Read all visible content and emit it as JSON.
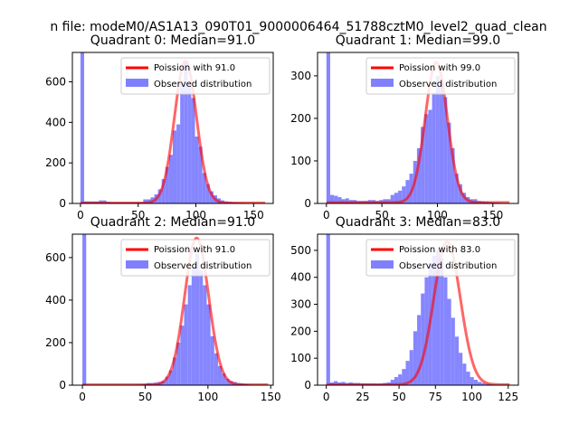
{
  "figure": {
    "suptitle": "n file: modeM0/AS1A13_090T01_9000006464_51788cztM0_level2_quad_clean"
  },
  "colors": {
    "fit_line": "#ff0000",
    "hist_bars": "#8080ff",
    "axes": "#000000",
    "background": "#ffffff"
  },
  "chart_data": [
    {
      "type": "bar",
      "title": "Quadrant 0: Median=91.0",
      "xlim": [
        -7,
        167
      ],
      "ylim": [
        0,
        745
      ],
      "xticks": [
        0,
        50,
        100,
        150
      ],
      "yticks": [
        0,
        200,
        400,
        600
      ],
      "legend": {
        "position": "top-right",
        "entries": [
          "Poission with 91.0",
          "Observed distribution"
        ]
      },
      "fit": {
        "name": "Poission with 91.0",
        "mean": 91.0,
        "peak": 700,
        "x_range": [
          0,
          160
        ]
      },
      "hist": {
        "name": "Observed distribution",
        "bin_width": 3.2,
        "x": [
          0,
          3.2,
          6.4,
          9.6,
          12.8,
          16,
          19.2,
          22.4,
          25.6,
          28.8,
          32,
          35.2,
          38.4,
          41.6,
          44.8,
          48,
          51.2,
          54.4,
          57.6,
          60.8,
          64,
          67.2,
          70.4,
          73.6,
          76.8,
          80,
          83.2,
          86.4,
          89.6,
          92.8,
          96,
          99.2,
          102.4,
          105.6,
          108.8,
          112,
          115.2,
          118.4,
          121.6,
          124.8,
          128,
          131.2,
          134.4,
          137.6,
          140.8,
          144,
          147.2,
          150.4,
          153.6,
          156.8
        ],
        "values": [
          745,
          10,
          10,
          10,
          10,
          15,
          15,
          8,
          5,
          5,
          5,
          5,
          5,
          5,
          5,
          5,
          5,
          20,
          20,
          30,
          45,
          70,
          120,
          180,
          240,
          360,
          390,
          600,
          700,
          590,
          520,
          330,
          280,
          150,
          95,
          60,
          40,
          25,
          15,
          10,
          8,
          5,
          4,
          3,
          2,
          2,
          1,
          1,
          1,
          0
        ]
      }
    },
    {
      "type": "bar",
      "title": "Quadrant 1: Median=99.0",
      "xlim": [
        -8,
        173
      ],
      "ylim": [
        0,
        355
      ],
      "xticks": [
        0,
        50,
        100,
        150
      ],
      "yticks": [
        0,
        100,
        200,
        300
      ],
      "legend": {
        "position": "top-right",
        "entries": [
          "Poission with 99.0",
          "Observed distribution"
        ]
      },
      "fit": {
        "name": "Poission with 99.0",
        "mean": 99.0,
        "peak": 330,
        "x_range": [
          0,
          165
        ]
      },
      "hist": {
        "name": "Observed distribution",
        "bin_width": 3.4,
        "x": [
          0,
          3.4,
          6.8,
          10.2,
          13.6,
          17,
          20.4,
          23.8,
          27.2,
          30.6,
          34,
          37.4,
          40.8,
          44.2,
          47.6,
          51,
          54.4,
          57.8,
          61.2,
          64.6,
          68,
          71.4,
          74.8,
          78.2,
          81.6,
          85,
          88.4,
          91.8,
          95.2,
          98.6,
          102,
          105.4,
          108.8,
          112.2,
          115.6,
          119,
          122.4,
          125.8,
          129.2,
          132.6,
          136,
          139.4,
          142.8,
          146.2,
          149.6,
          153,
          156.4,
          159.8,
          163.2,
          166.6
        ],
        "values": [
          355,
          20,
          18,
          15,
          10,
          12,
          8,
          8,
          6,
          6,
          6,
          8,
          8,
          6,
          8,
          10,
          10,
          20,
          25,
          30,
          40,
          55,
          70,
          100,
          130,
          180,
          210,
          220,
          260,
          300,
          280,
          250,
          190,
          130,
          70,
          45,
          25,
          15,
          10,
          10,
          6,
          5,
          4,
          3,
          2,
          2,
          1,
          1,
          0,
          0
        ]
      }
    },
    {
      "type": "bar",
      "title": "Quadrant 2: Median=91.0",
      "xlim": [
        -8,
        152
      ],
      "ylim": [
        0,
        710
      ],
      "xticks": [
        0,
        50,
        100,
        150
      ],
      "yticks": [
        0,
        200,
        400,
        600
      ],
      "legend": {
        "position": "top-right",
        "entries": [
          "Poission with 91.0",
          "Observed distribution"
        ]
      },
      "fit": {
        "name": "Poission with 91.0",
        "mean": 91.0,
        "peak": 690,
        "x_range": [
          0,
          148
        ]
      },
      "hist": {
        "name": "Observed distribution",
        "bin_width": 3,
        "x": [
          0,
          3,
          6,
          9,
          12,
          15,
          18,
          21,
          24,
          27,
          30,
          33,
          36,
          39,
          42,
          45,
          48,
          51,
          54,
          57,
          60,
          63,
          66,
          69,
          72,
          75,
          78,
          81,
          84,
          87,
          90,
          93,
          96,
          99,
          102,
          105,
          108,
          111,
          114,
          117,
          120,
          123,
          126,
          129,
          132,
          135,
          138,
          141,
          144,
          147
        ],
        "values": [
          710,
          2,
          2,
          2,
          2,
          2,
          2,
          2,
          2,
          2,
          2,
          2,
          2,
          2,
          3,
          3,
          5,
          10,
          10,
          12,
          15,
          20,
          40,
          70,
          130,
          200,
          280,
          380,
          470,
          560,
          620,
          540,
          470,
          380,
          230,
          150,
          90,
          55,
          30,
          20,
          15,
          10,
          8,
          5,
          3,
          2,
          2,
          1,
          1,
          0
        ]
      }
    },
    {
      "type": "bar",
      "title": "Quadrant 3: Median=83.0",
      "xlim": [
        -6,
        132
      ],
      "ylim": [
        0,
        560
      ],
      "xticks": [
        0,
        25,
        50,
        75,
        100,
        125
      ],
      "yticks": [
        0,
        100,
        200,
        300,
        400,
        500
      ],
      "legend": {
        "position": "top-right",
        "entries": [
          "Poission with 83.0",
          "Observed distribution"
        ]
      },
      "fit": {
        "name": "Poission with 83.0",
        "mean": 83.0,
        "peak": 530,
        "x_range": [
          0,
          126
        ]
      },
      "hist": {
        "name": "Observed distribution",
        "bin_width": 2.6,
        "x": [
          0,
          2.6,
          5.2,
          7.8,
          10.4,
          13,
          15.6,
          18.2,
          20.8,
          23.4,
          26,
          28.6,
          31.2,
          33.8,
          36.4,
          39,
          41.6,
          44.2,
          46.8,
          49.4,
          52,
          54.6,
          57.2,
          59.8,
          62.4,
          65,
          67.6,
          70.2,
          72.8,
          75.4,
          78,
          80.6,
          83.2,
          85.8,
          88.4,
          91,
          93.6,
          96.2,
          98.8,
          101.4,
          104,
          106.6,
          109.2,
          111.8,
          114.4,
          117,
          119.6,
          122.2,
          124.8,
          127.4
        ],
        "values": [
          560,
          10,
          15,
          10,
          12,
          8,
          10,
          8,
          8,
          6,
          6,
          6,
          6,
          5,
          6,
          8,
          10,
          20,
          30,
          40,
          60,
          90,
          130,
          200,
          260,
          340,
          400,
          450,
          480,
          500,
          470,
          400,
          320,
          250,
          180,
          120,
          80,
          50,
          30,
          20,
          12,
          8,
          5,
          3,
          2,
          1,
          1,
          0,
          0,
          0
        ]
      }
    }
  ]
}
